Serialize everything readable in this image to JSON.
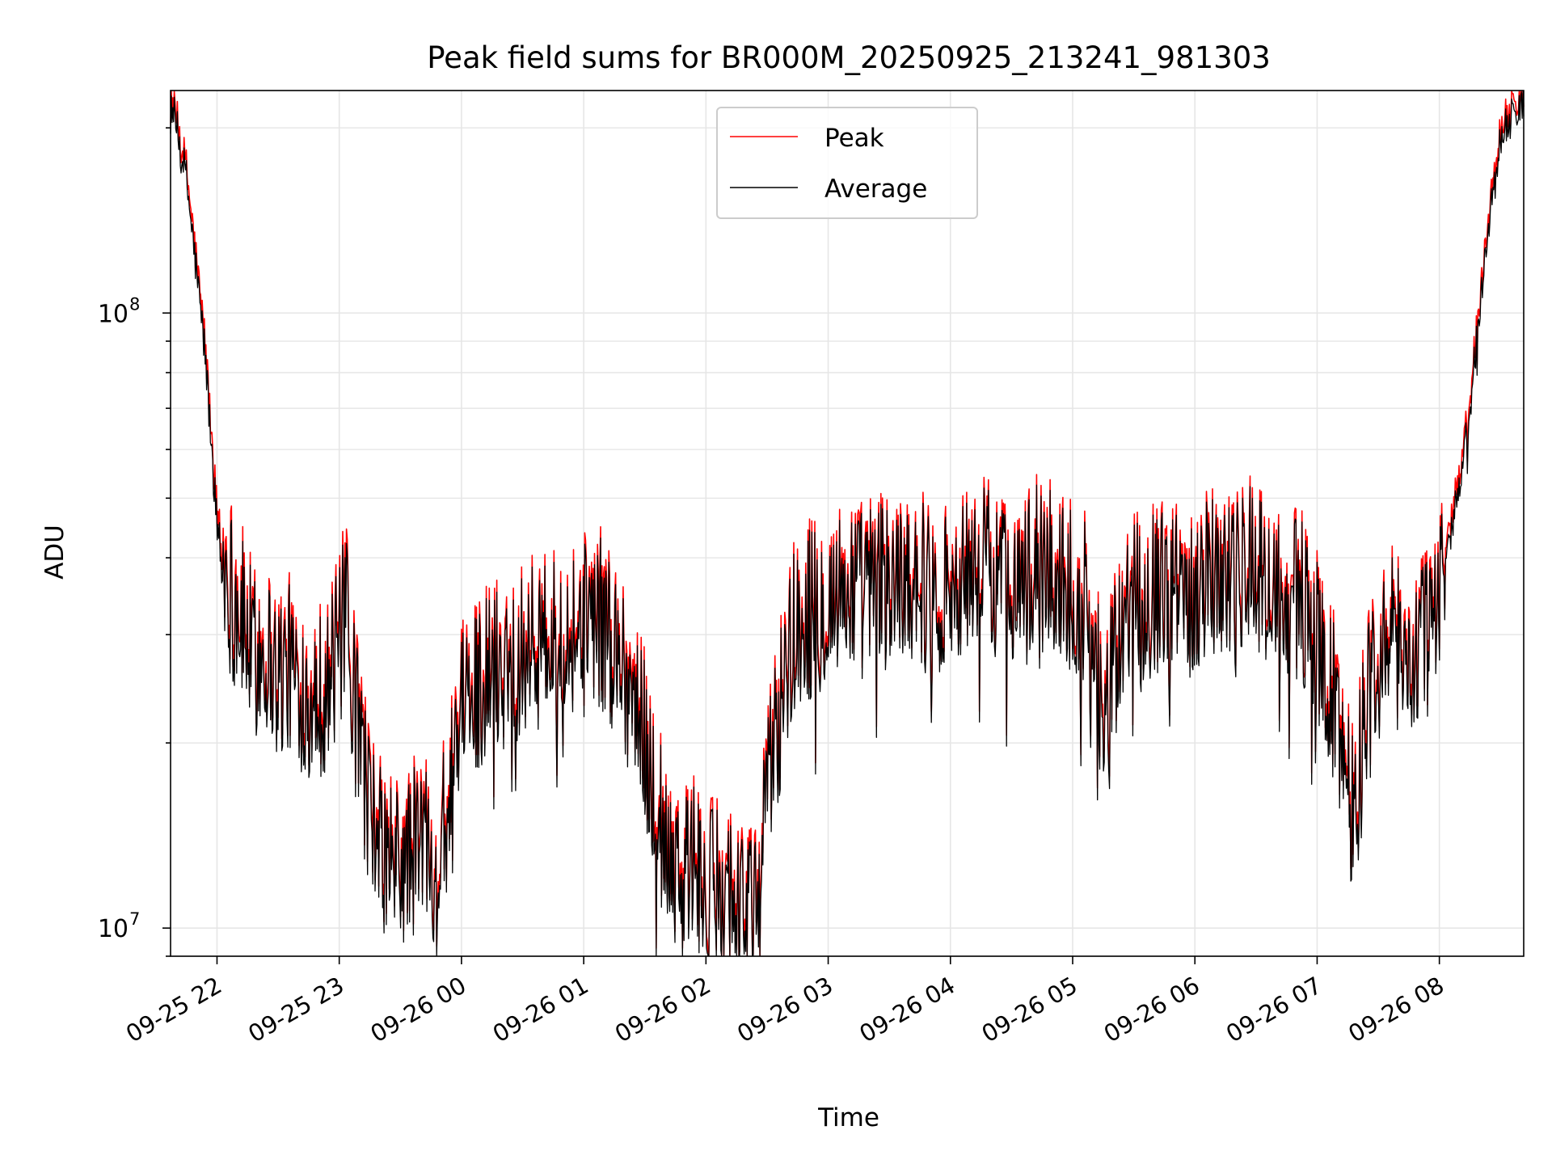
{
  "chart_data": {
    "type": "line",
    "title": "Peak field sums for BR000M_20250925_213241_981303",
    "xlabel": "Time",
    "ylabel": "ADU",
    "yscale": "log",
    "ylim": [
      9000000,
      230000000
    ],
    "x_unit": "hours since 09-25 21:00",
    "xlim": [
      0.62,
      11.69
    ],
    "x_ticks": [
      {
        "value": 1,
        "label": "09-25 22"
      },
      {
        "value": 2,
        "label": "09-25 23"
      },
      {
        "value": 3,
        "label": "09-26 00"
      },
      {
        "value": 4,
        "label": "09-26 01"
      },
      {
        "value": 5,
        "label": "09-26 02"
      },
      {
        "value": 6,
        "label": "09-26 03"
      },
      {
        "value": 7,
        "label": "09-26 04"
      },
      {
        "value": 8,
        "label": "09-26 05"
      },
      {
        "value": 9,
        "label": "09-26 06"
      },
      {
        "value": 10,
        "label": "09-26 07"
      },
      {
        "value": 11,
        "label": "09-26 08"
      }
    ],
    "y_ticks": [
      {
        "value": 10000000,
        "label": "10",
        "exp": "7"
      },
      {
        "value": 100000000,
        "label": "10",
        "exp": "8"
      }
    ],
    "grid": true,
    "legend_position": "upper center",
    "series": [
      {
        "name": "Peak",
        "color": "#ff0000",
        "x": [
          0.62,
          0.75,
          0.9,
          1.0,
          1.1,
          1.2,
          1.3,
          1.4,
          1.5,
          1.6,
          1.7,
          1.8,
          1.9,
          2.0,
          2.05,
          2.1,
          2.2,
          2.3,
          2.4,
          2.5,
          2.6,
          2.7,
          2.8,
          2.9,
          3.0,
          3.1,
          3.2,
          3.3,
          3.4,
          3.5,
          3.6,
          3.7,
          3.8,
          3.9,
          4.0,
          4.1,
          4.2,
          4.3,
          4.4,
          4.5,
          4.6,
          4.7,
          4.8,
          4.9,
          5.0,
          5.1,
          5.2,
          5.3,
          5.4,
          5.5,
          5.6,
          5.7,
          5.8,
          5.9,
          6.0,
          6.1,
          6.2,
          6.3,
          6.4,
          6.5,
          6.6,
          6.7,
          6.8,
          6.9,
          7.0,
          7.1,
          7.2,
          7.3,
          7.4,
          7.5,
          7.6,
          7.7,
          7.8,
          7.9,
          8.0,
          8.1,
          8.2,
          8.25,
          8.3,
          8.4,
          8.5,
          8.6,
          8.7,
          8.8,
          8.9,
          9.0,
          9.1,
          9.2,
          9.3,
          9.4,
          9.5,
          9.6,
          9.7,
          9.8,
          9.9,
          10.0,
          10.1,
          10.2,
          10.3,
          10.4,
          10.5,
          10.6,
          10.7,
          10.8,
          10.9,
          11.0,
          11.05,
          11.1,
          11.2,
          11.3,
          11.4,
          11.5,
          11.69
        ],
        "y": [
          230000000,
          170000000,
          90000000,
          47000000,
          40000000,
          35000000,
          30000000,
          31000000,
          28000000,
          29000000,
          27000000,
          26000000,
          27000000,
          31000000,
          36000000,
          27000000,
          20000000,
          15000000,
          14000000,
          13500000,
          14500000,
          15500000,
          14000000,
          17000000,
          24000000,
          27000000,
          28000000,
          29000000,
          30000000,
          31000000,
          31500000,
          32000000,
          31000000,
          33000000,
          34000000,
          35000000,
          33000000,
          30000000,
          26000000,
          22000000,
          17000000,
          15000000,
          13500000,
          14000000,
          12000000,
          13000000,
          12500000,
          12000000,
          11000000,
          18000000,
          25000000,
          32000000,
          35000000,
          36000000,
          37000000,
          38000000,
          39000000,
          38000000,
          40000000,
          39000000,
          40000000,
          41000000,
          39000000,
          38000000,
          39000000,
          40000000,
          41000000,
          42000000,
          40000000,
          41000000,
          39000000,
          42000000,
          41000000,
          40000000,
          39000000,
          37000000,
          30000000,
          22000000,
          26000000,
          33000000,
          37000000,
          38000000,
          39000000,
          37000000,
          38000000,
          39000000,
          41000000,
          42000000,
          40000000,
          42000000,
          41000000,
          39000000,
          40000000,
          38000000,
          36000000,
          32000000,
          27000000,
          22000000,
          17000000,
          25000000,
          30000000,
          32000000,
          31000000,
          30000000,
          33000000,
          38000000,
          42000000,
          46000000,
          60000000,
          90000000,
          140000000,
          200000000,
          230000000
        ]
      },
      {
        "name": "Average",
        "color": "#000000",
        "x": [
          0.62,
          0.75,
          0.9,
          1.0,
          1.1,
          1.2,
          1.3,
          1.4,
          1.5,
          1.6,
          1.7,
          1.8,
          1.9,
          2.0,
          2.05,
          2.1,
          2.2,
          2.3,
          2.4,
          2.5,
          2.6,
          2.7,
          2.8,
          2.9,
          3.0,
          3.1,
          3.2,
          3.3,
          3.4,
          3.5,
          3.6,
          3.7,
          3.8,
          3.9,
          4.0,
          4.1,
          4.2,
          4.3,
          4.4,
          4.5,
          4.6,
          4.7,
          4.8,
          4.9,
          5.0,
          5.1,
          5.2,
          5.3,
          5.4,
          5.5,
          5.6,
          5.7,
          5.8,
          5.9,
          6.0,
          6.1,
          6.2,
          6.3,
          6.4,
          6.5,
          6.6,
          6.7,
          6.8,
          6.9,
          7.0,
          7.1,
          7.2,
          7.3,
          7.4,
          7.5,
          7.6,
          7.7,
          7.8,
          7.9,
          8.0,
          8.1,
          8.2,
          8.25,
          8.3,
          8.4,
          8.5,
          8.6,
          8.7,
          8.8,
          8.9,
          9.0,
          9.1,
          9.2,
          9.3,
          9.4,
          9.5,
          9.6,
          9.7,
          9.8,
          9.9,
          10.0,
          10.1,
          10.2,
          10.3,
          10.4,
          10.5,
          10.6,
          10.7,
          10.8,
          10.9,
          11.0,
          11.05,
          11.1,
          11.2,
          11.3,
          11.4,
          11.5,
          11.69
        ],
        "y": [
          228000000,
          168000000,
          89000000,
          46000000,
          39000000,
          34000000,
          29500000,
          30500000,
          27500000,
          28500000,
          26500000,
          25500000,
          26500000,
          30500000,
          35000000,
          26500000,
          19500000,
          14800000,
          13800000,
          13300000,
          14300000,
          15200000,
          13800000,
          16700000,
          23500000,
          26500000,
          27500000,
          28500000,
          29500000,
          30500000,
          31000000,
          31500000,
          30500000,
          32500000,
          33500000,
          34500000,
          32500000,
          29500000,
          25500000,
          21500000,
          16700000,
          14800000,
          13300000,
          13800000,
          11800000,
          12800000,
          12300000,
          11800000,
          10800000,
          17700000,
          24500000,
          31500000,
          34500000,
          35500000,
          36500000,
          37500000,
          38500000,
          37500000,
          39500000,
          38500000,
          39500000,
          40500000,
          38500000,
          37500000,
          38500000,
          39500000,
          40500000,
          41500000,
          39500000,
          40500000,
          38500000,
          41500000,
          40500000,
          39500000,
          38500000,
          36500000,
          29500000,
          21500000,
          25500000,
          32500000,
          36500000,
          37500000,
          38500000,
          36500000,
          37500000,
          38500000,
          40500000,
          41500000,
          39500000,
          41500000,
          40500000,
          38500000,
          39500000,
          37500000,
          35500000,
          31500000,
          26500000,
          21500000,
          16700000,
          24500000,
          29500000,
          31500000,
          30500000,
          29500000,
          32500000,
          37500000,
          41500000,
          45000000,
          59000000,
          89000000,
          139000000,
          198000000,
          228000000
        ]
      }
    ]
  }
}
